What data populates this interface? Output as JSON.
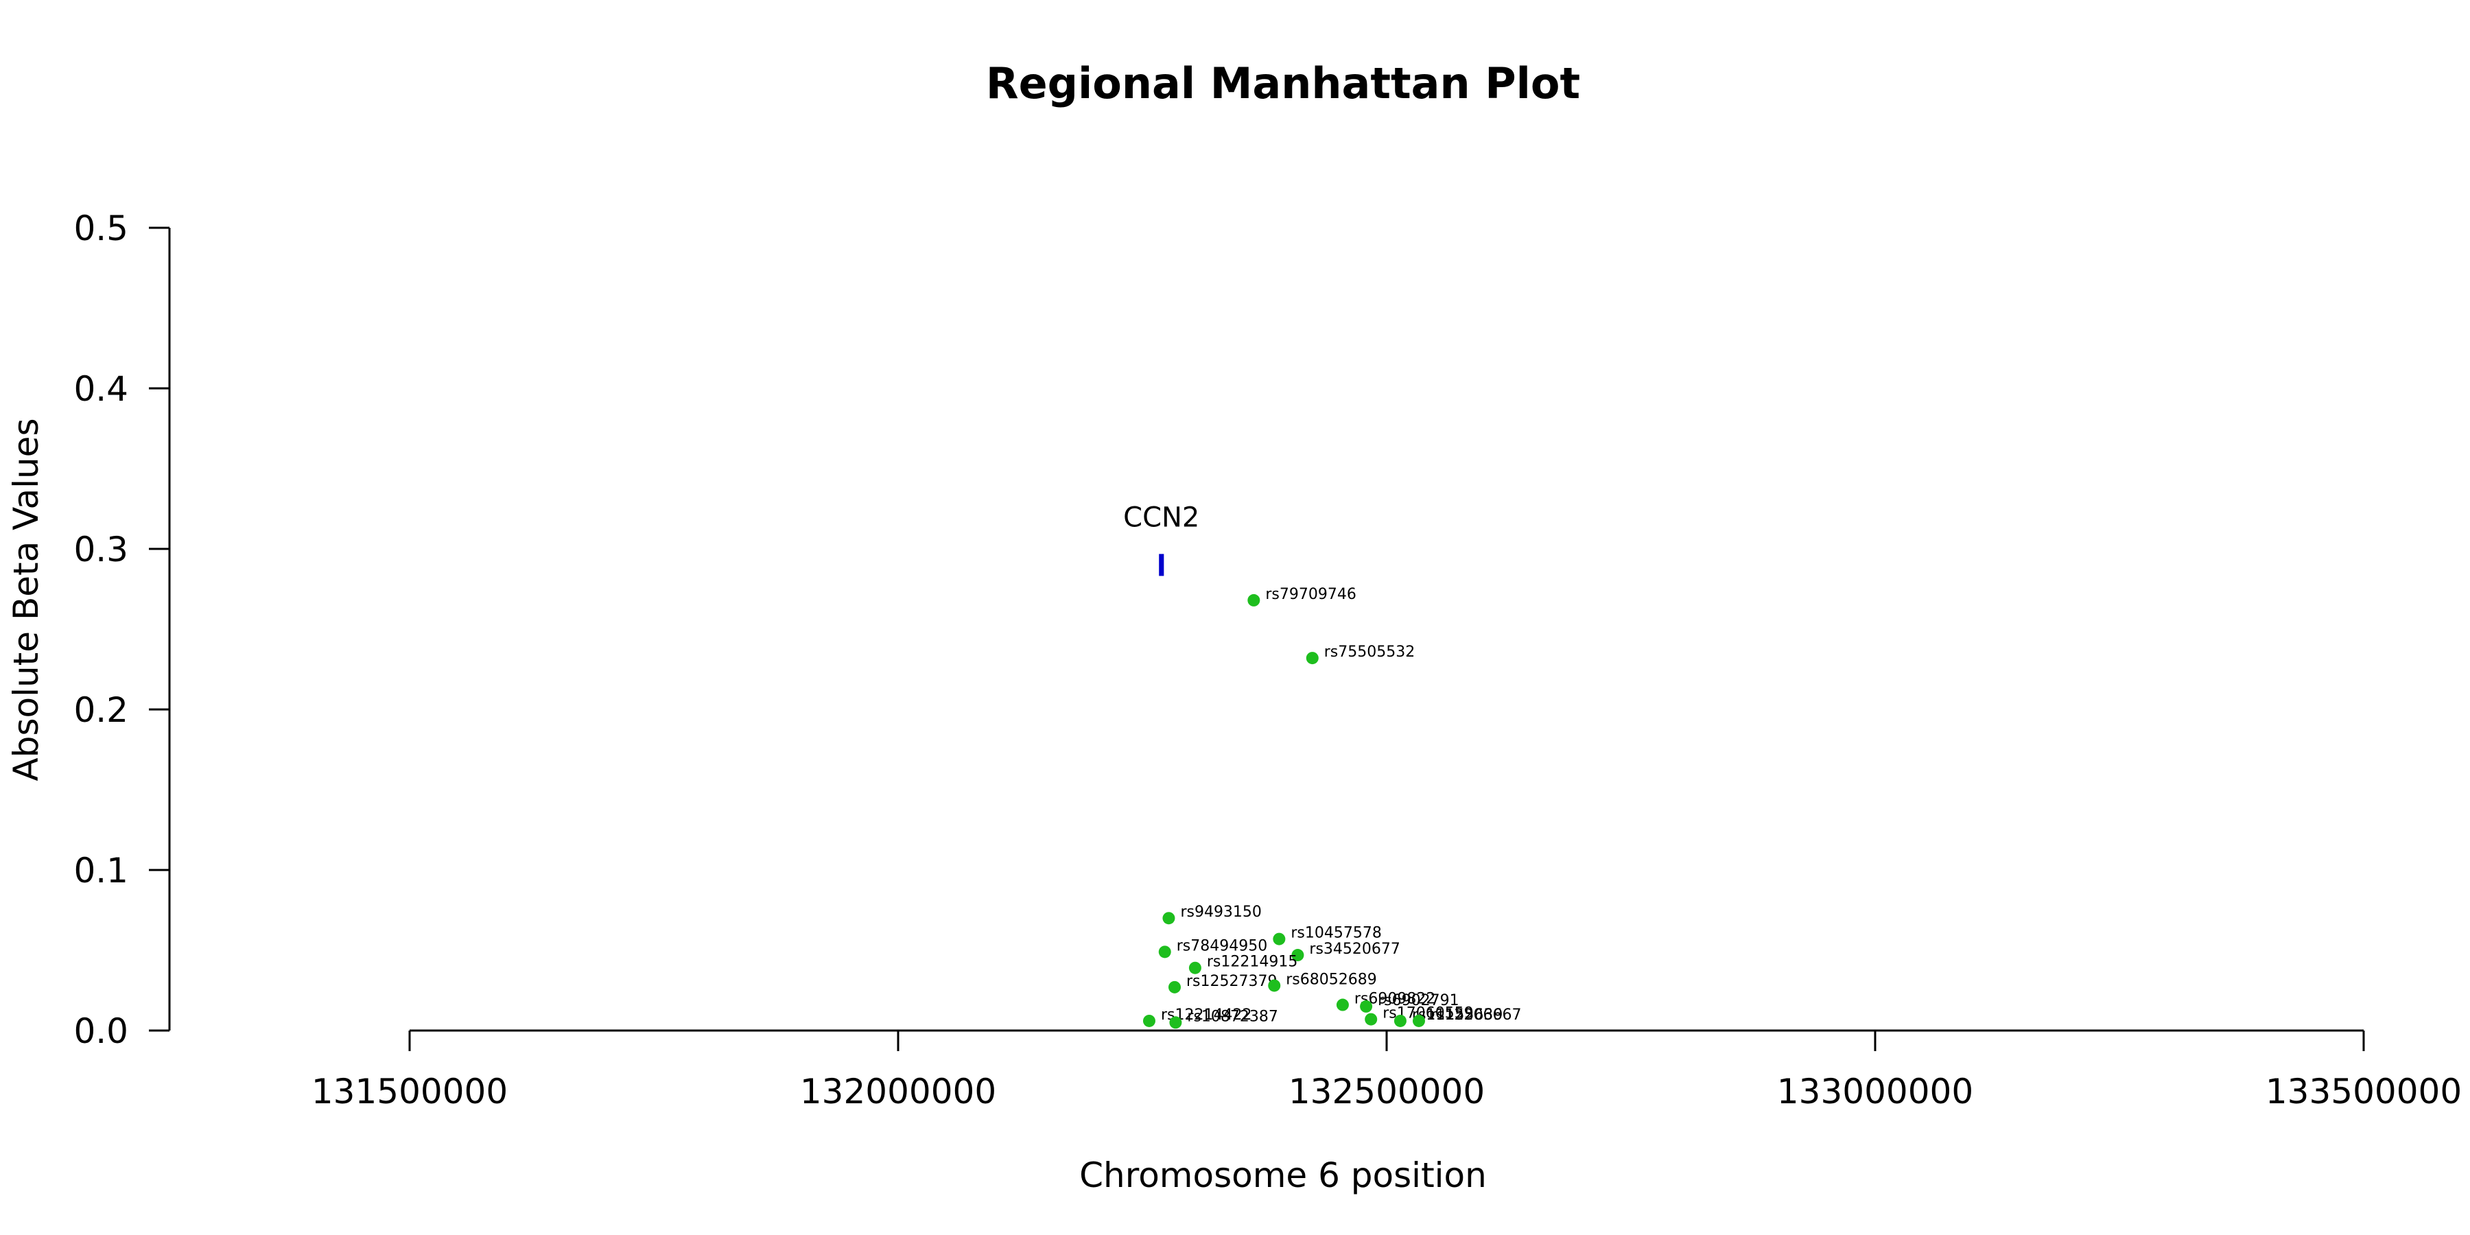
{
  "chart_data": {
    "type": "scatter",
    "title": "Regional Manhattan Plot",
    "xlabel": "Chromosome 6 position",
    "ylabel": "Absolute Beta Values",
    "xlim": [
      131500000,
      133500000
    ],
    "ylim": [
      0,
      0.5
    ],
    "x_ticks": [
      "131500000",
      "132000000",
      "132500000",
      "133000000",
      "133500000"
    ],
    "y_ticks": [
      "0.0",
      "0.1",
      "0.2",
      "0.3",
      "0.4",
      "0.5"
    ],
    "grid": false,
    "point_color": "#1ebe1e",
    "gene": {
      "name": "CCN2",
      "start": 132267000,
      "end": 132272000,
      "y": 0.29,
      "color": "#0000cc"
    },
    "points": [
      {
        "label": "rs79709746",
        "x": 132364000,
        "y": 0.268
      },
      {
        "label": "rs75505532",
        "x": 132424000,
        "y": 0.232
      },
      {
        "label": "rs9493150",
        "x": 132277000,
        "y": 0.07
      },
      {
        "label": "rs10457578",
        "x": 132390000,
        "y": 0.057
      },
      {
        "label": "rs78494950",
        "x": 132273000,
        "y": 0.049
      },
      {
        "label": "rs34520677",
        "x": 132409000,
        "y": 0.047
      },
      {
        "label": "rs12214915",
        "x": 132304000,
        "y": 0.039
      },
      {
        "label": "rs12527379",
        "x": 132283000,
        "y": 0.027
      },
      {
        "label": "rs68052689",
        "x": 132385000,
        "y": 0.028
      },
      {
        "label": "rs6909822",
        "x": 132455000,
        "y": 0.016
      },
      {
        "label": "rs6902791",
        "x": 132479000,
        "y": 0.015
      },
      {
        "label": "rs17060559",
        "x": 132484000,
        "y": 0.007
      },
      {
        "label": "rs11155639",
        "x": 132514000,
        "y": 0.006
      },
      {
        "label": "rs12206667",
        "x": 132533000,
        "y": 0.006
      },
      {
        "label": "rs12214422",
        "x": 132257000,
        "y": 0.006
      },
      {
        "label": "rs10872387",
        "x": 132284000,
        "y": 0.005
      }
    ]
  }
}
